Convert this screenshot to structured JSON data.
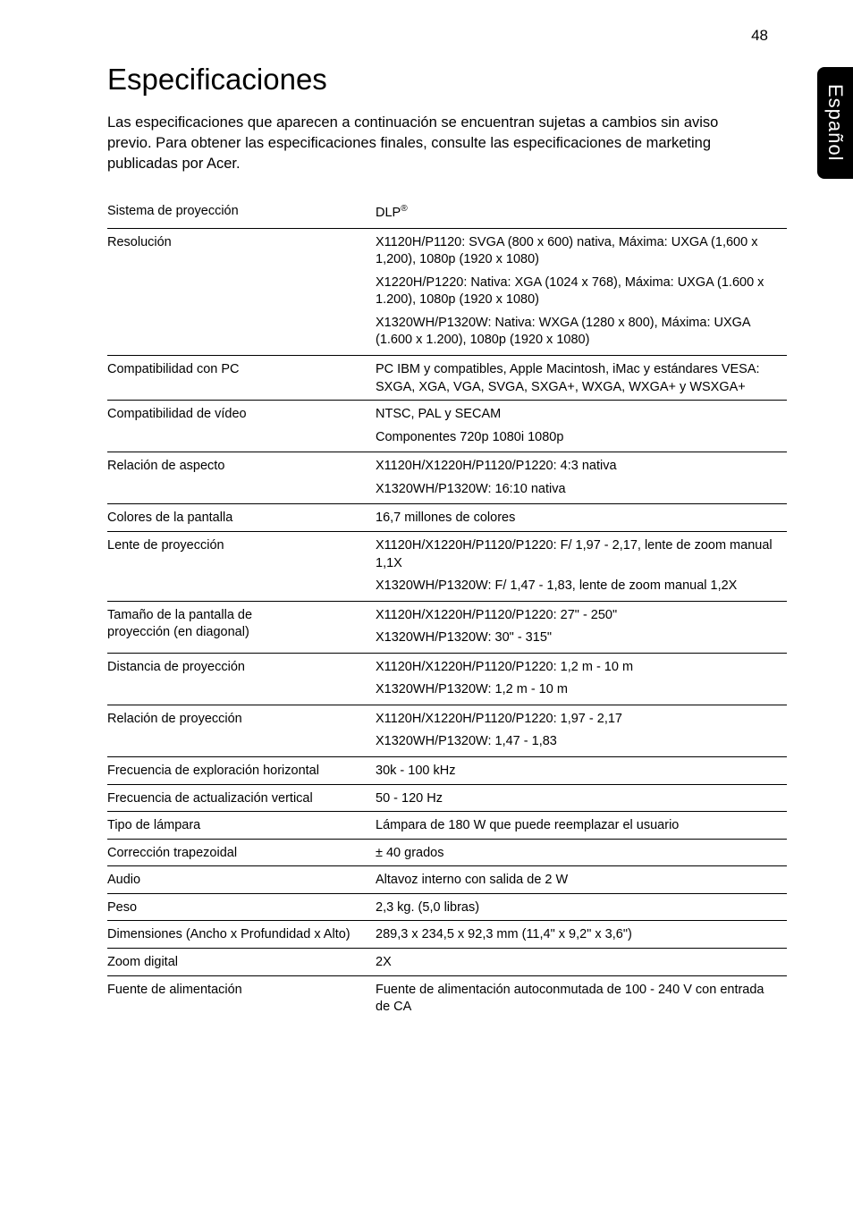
{
  "page_number": "48",
  "side_tab": "Español",
  "title": "Especificaciones",
  "intro": "Las especificaciones que aparecen a continuación se encuentran sujetas a cambios sin aviso previo. Para obtener las especificaciones finales, consulte las especificaciones de marketing publicadas por Acer.",
  "rows": {
    "r0": {
      "label": "Sistema de proyección",
      "v1": "DLP",
      "sup": "®"
    },
    "r1": {
      "label": "Resolución",
      "p1": "X1120H/P1120: SVGA (800 x 600) nativa, Máxima: UXGA (1,600 x 1,200), 1080p (1920 x 1080)",
      "p2": "X1220H/P1220: Nativa: XGA (1024 x 768), Máxima: UXGA (1.600 x 1.200), 1080p (1920 x 1080)",
      "p3": "X1320WH/P1320W: Nativa: WXGA (1280 x 800), Máxima: UXGA (1.600 x 1.200), 1080p (1920 x 1080)"
    },
    "r2": {
      "label": "Compatibilidad con PC",
      "v": "PC IBM y compatibles, Apple Macintosh, iMac y estándares VESA: SXGA, XGA, VGA, SVGA, SXGA+, WXGA, WXGA+ y WSXGA+"
    },
    "r3": {
      "label": "Compatibilidad de vídeo",
      "p1": "NTSC, PAL y SECAM",
      "p2": "Componentes 720p 1080i 1080p"
    },
    "r4": {
      "label": "Relación de aspecto",
      "p1": "X1120H/X1220H/P1120/P1220: 4:3 nativa",
      "p2": "X1320WH/P1320W: 16:10 nativa"
    },
    "r5": {
      "label": "Colores de la pantalla",
      "v": "16,7 millones de colores"
    },
    "r6": {
      "label": "Lente de proyección",
      "p1": "X1120H/X1220H/P1120/P1220: F/ 1,97 - 2,17, lente de zoom manual 1,1X",
      "p2": "X1320WH/P1320W: F/ 1,47 - 1,83, lente de zoom manual 1,2X"
    },
    "r7": {
      "label1": "Tamaño de la pantalla de",
      "label2": "proyección (en diagonal)",
      "p1": "X1120H/X1220H/P1120/P1220: 27\" - 250\"",
      "p2": "X1320WH/P1320W: 30\" - 315\""
    },
    "r8": {
      "label": "Distancia de proyección",
      "p1": "X1120H/X1220H/P1120/P1220: 1,2 m - 10 m",
      "p2": "X1320WH/P1320W: 1,2 m - 10 m"
    },
    "r9": {
      "label": "Relación de proyección",
      "p1": "X1120H/X1220H/P1120/P1220: 1,97 - 2,17",
      "p2": "X1320WH/P1320W: 1,47 - 1,83"
    },
    "r10": {
      "label": "Frecuencia de exploración horizontal",
      "v": "30k - 100 kHz"
    },
    "r11": {
      "label": "Frecuencia de actualización vertical",
      "v": "50 - 120 Hz"
    },
    "r12": {
      "label": "Tipo de lámpara",
      "v": "Lámpara de 180 W que puede reemplazar el usuario"
    },
    "r13": {
      "label": "Corrección trapezoidal",
      "v": "± 40 grados"
    },
    "r14": {
      "label": "Audio",
      "v": "Altavoz interno con salida de 2 W"
    },
    "r15": {
      "label": "Peso",
      "v": "2,3 kg. (5,0 libras)"
    },
    "r16": {
      "label": "Dimensiones (Ancho x Profundidad x Alto)",
      "v": "289,3 x 234,5 x 92,3 mm (11,4\" x 9,2\" x 3,6\")"
    },
    "r17": {
      "label": "Zoom digital",
      "v": "2X"
    },
    "r18": {
      "label": "Fuente de alimentación",
      "v": "Fuente de alimentación autoconmutada de 100 - 240 V con entrada de CA"
    }
  }
}
